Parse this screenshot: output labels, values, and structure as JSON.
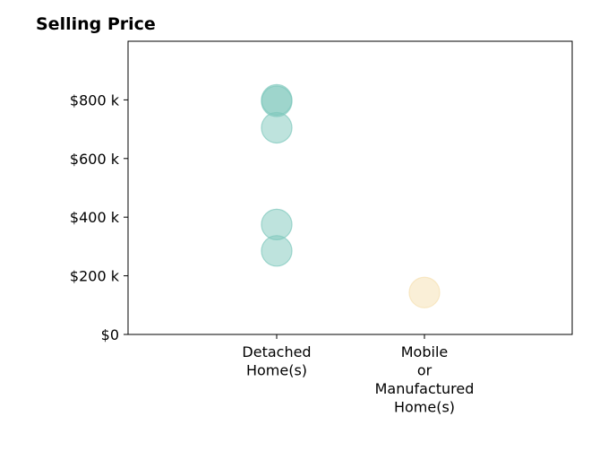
{
  "chart_data": {
    "type": "scatter",
    "title": "Selling Price",
    "xlabel": "",
    "ylabel": "",
    "categories": [
      [
        "Detached",
        "Home(s)"
      ],
      [
        "Mobile",
        "or",
        "Manufactured",
        "Home(s)"
      ]
    ],
    "ylim": [
      0,
      1000000
    ],
    "yticks": [
      {
        "value": 0,
        "label": "$0"
      },
      {
        "value": 200000,
        "label": "$200 k"
      },
      {
        "value": 400000,
        "label": "$400 k"
      },
      {
        "value": 600000,
        "label": "$600 k"
      },
      {
        "value": 800000,
        "label": "$800 k"
      }
    ],
    "grid": false,
    "series": [
      {
        "category_index": 0,
        "color": "#7ec8bc",
        "values": [
          800000,
          795000,
          705000,
          375000,
          285000
        ]
      },
      {
        "category_index": 1,
        "color": "#f5dfb0",
        "values": [
          143000
        ]
      }
    ]
  }
}
